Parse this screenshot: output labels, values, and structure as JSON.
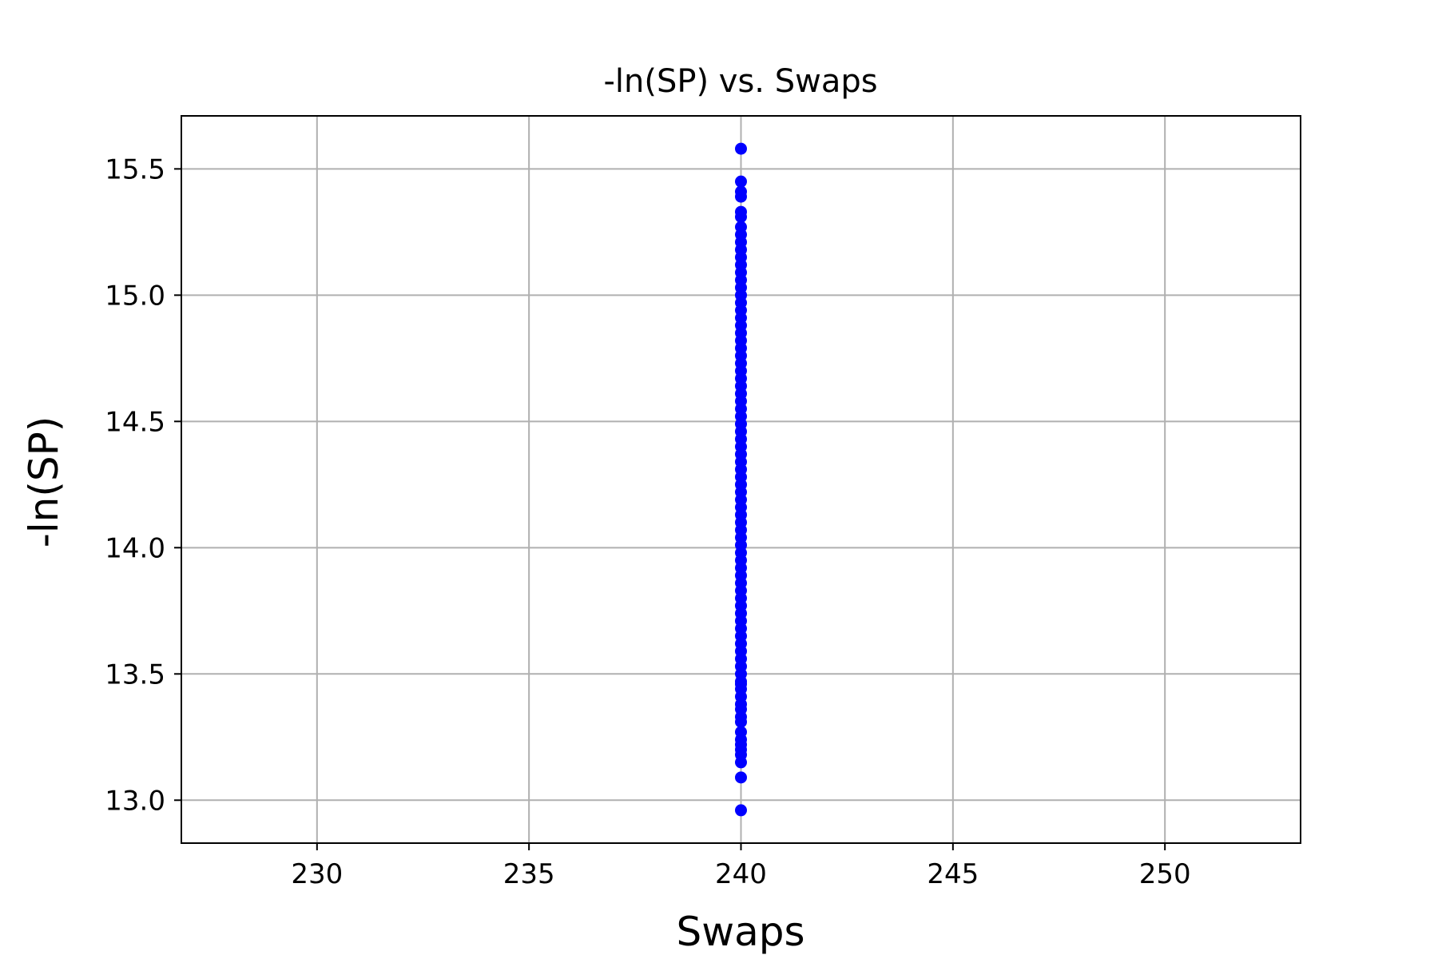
{
  "chart_data": {
    "type": "scatter",
    "title": "-ln(SP) vs. Swaps",
    "xlabel": "Swaps",
    "ylabel": "-ln(SP)",
    "xlim": [
      226.8,
      253.2
    ],
    "ylim": [
      12.83,
      15.71
    ],
    "xticks": [
      230,
      235,
      240,
      245,
      250
    ],
    "yticks": [
      13.0,
      13.5,
      14.0,
      14.5,
      15.0,
      15.5
    ],
    "xtick_labels": [
      "230",
      "235",
      "240",
      "245",
      "250"
    ],
    "ytick_labels": [
      "13.0",
      "13.5",
      "14.0",
      "14.5",
      "15.0",
      "15.5"
    ],
    "grid": true,
    "legend": "none",
    "series": [
      {
        "color": "#0000ff",
        "marker": "circle",
        "x": [
          240,
          240,
          240,
          240,
          240,
          240,
          240,
          240,
          240,
          240,
          240,
          240,
          240,
          240,
          240,
          240,
          240,
          240,
          240,
          240,
          240,
          240,
          240,
          240,
          240,
          240,
          240,
          240,
          240,
          240,
          240,
          240,
          240,
          240,
          240,
          240,
          240,
          240,
          240,
          240,
          240,
          240,
          240,
          240,
          240,
          240,
          240,
          240,
          240,
          240,
          240,
          240,
          240,
          240,
          240,
          240,
          240,
          240,
          240,
          240,
          240,
          240,
          240,
          240,
          240,
          240,
          240,
          240,
          240,
          240,
          240,
          240,
          240,
          240,
          240,
          240,
          240,
          240,
          240,
          240,
          240,
          240
        ],
        "y": [
          15.58,
          15.45,
          15.41,
          15.39,
          15.33,
          15.31,
          15.27,
          15.24,
          15.21,
          15.18,
          15.15,
          15.12,
          15.09,
          15.06,
          15.03,
          15.0,
          14.97,
          14.94,
          14.91,
          14.88,
          14.85,
          14.82,
          14.79,
          14.76,
          14.73,
          14.7,
          14.67,
          14.64,
          14.61,
          14.58,
          14.55,
          14.52,
          14.49,
          14.46,
          14.43,
          14.4,
          14.37,
          14.34,
          14.31,
          14.28,
          14.25,
          14.22,
          14.19,
          14.16,
          14.13,
          14.1,
          14.07,
          14.04,
          14.01,
          13.98,
          13.95,
          13.92,
          13.89,
          13.86,
          13.83,
          13.8,
          13.77,
          13.74,
          13.71,
          13.68,
          13.65,
          13.62,
          13.59,
          13.56,
          13.53,
          13.5,
          13.47,
          13.44,
          13.41,
          13.38,
          13.36,
          13.33,
          13.31,
          13.27,
          13.24,
          13.22,
          13.2,
          13.18,
          13.15,
          13.09,
          12.96,
          13.46
        ]
      }
    ]
  }
}
